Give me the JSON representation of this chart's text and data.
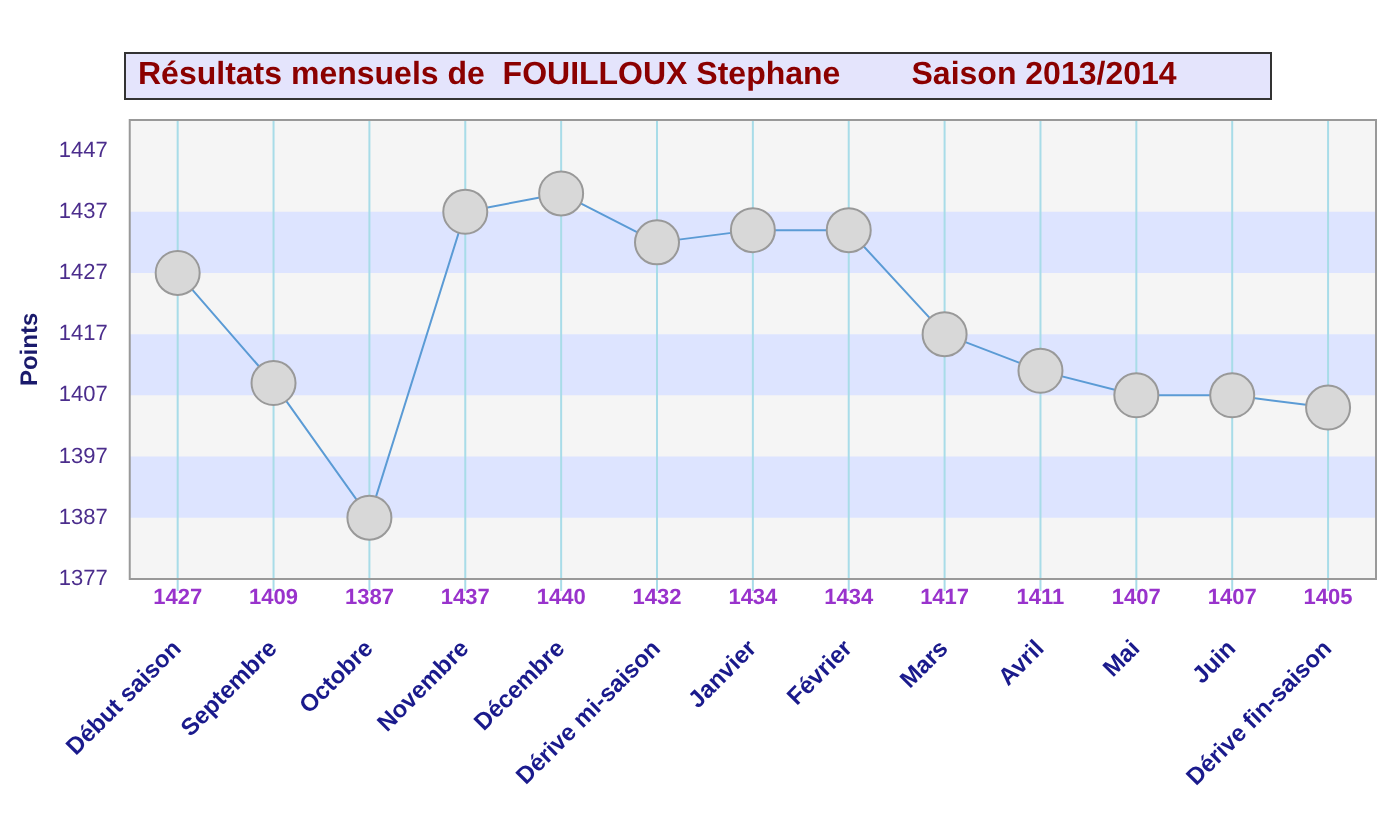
{
  "chart_data": {
    "type": "line",
    "title": "Résultats mensuels de  FOUILLOUX Stephane        Saison 2013/2014",
    "ylabel": "Points",
    "categories": [
      "Début saison",
      "Septembre",
      "Octobre",
      "Novembre",
      "Décembre",
      "Dérive mi-saison",
      "Janvier",
      "Février",
      "Mars",
      "Avril",
      "Mai",
      "Juin",
      "Dérive fin-saison"
    ],
    "series": [
      {
        "color": "#5b9bd5",
        "values": [
          1427,
          1409,
          1387,
          1437,
          1440,
          1432,
          1434,
          1434,
          1417,
          1411,
          1407,
          1407,
          1405
        ]
      }
    ],
    "ylim": [
      1377,
      1452
    ],
    "yticks": [
      1377,
      1387,
      1397,
      1407,
      1417,
      1427,
      1437,
      1447
    ],
    "bands": [
      {
        "axis": "y",
        "from": 1387,
        "to": 1397,
        "color": "#dde4ff"
      },
      {
        "axis": "y",
        "from": 1407,
        "to": 1417,
        "color": "#dde4ff"
      },
      {
        "axis": "y",
        "from": 1427,
        "to": 1437,
        "color": "#dde4ff"
      }
    ],
    "grid": "x",
    "legend": false,
    "marker": "circle",
    "line_style": "solid",
    "data_labels": true
  }
}
